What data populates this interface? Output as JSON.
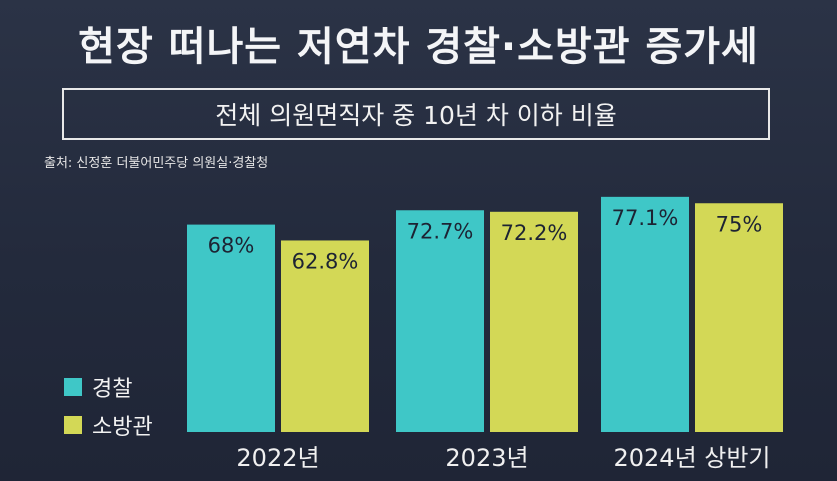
{
  "title": "현장 떠나는 저연차 경찰·소방관 증가세",
  "subtitle": "전체 의원면직자 중 10년 차 이하 비율",
  "source": "출처: 신정훈 더불어민주당 의원실·경찰청",
  "colors": {
    "police": "#3fc7c7",
    "fire": "#d3d856",
    "background": "#252c3e"
  },
  "chart_data": {
    "type": "bar",
    "categories": [
      "2022년",
      "2023년",
      "2024년 상반기"
    ],
    "series": [
      {
        "name": "경찰",
        "values": [
          68,
          72.7,
          77.1
        ],
        "labels": [
          "68%",
          "72.7%",
          "77.1%"
        ]
      },
      {
        "name": "소방관",
        "values": [
          62.8,
          72.2,
          75
        ],
        "labels": [
          "62.8%",
          "72.2%",
          "75%"
        ]
      }
    ],
    "ylim": [
      0,
      100
    ],
    "legend": "left"
  }
}
